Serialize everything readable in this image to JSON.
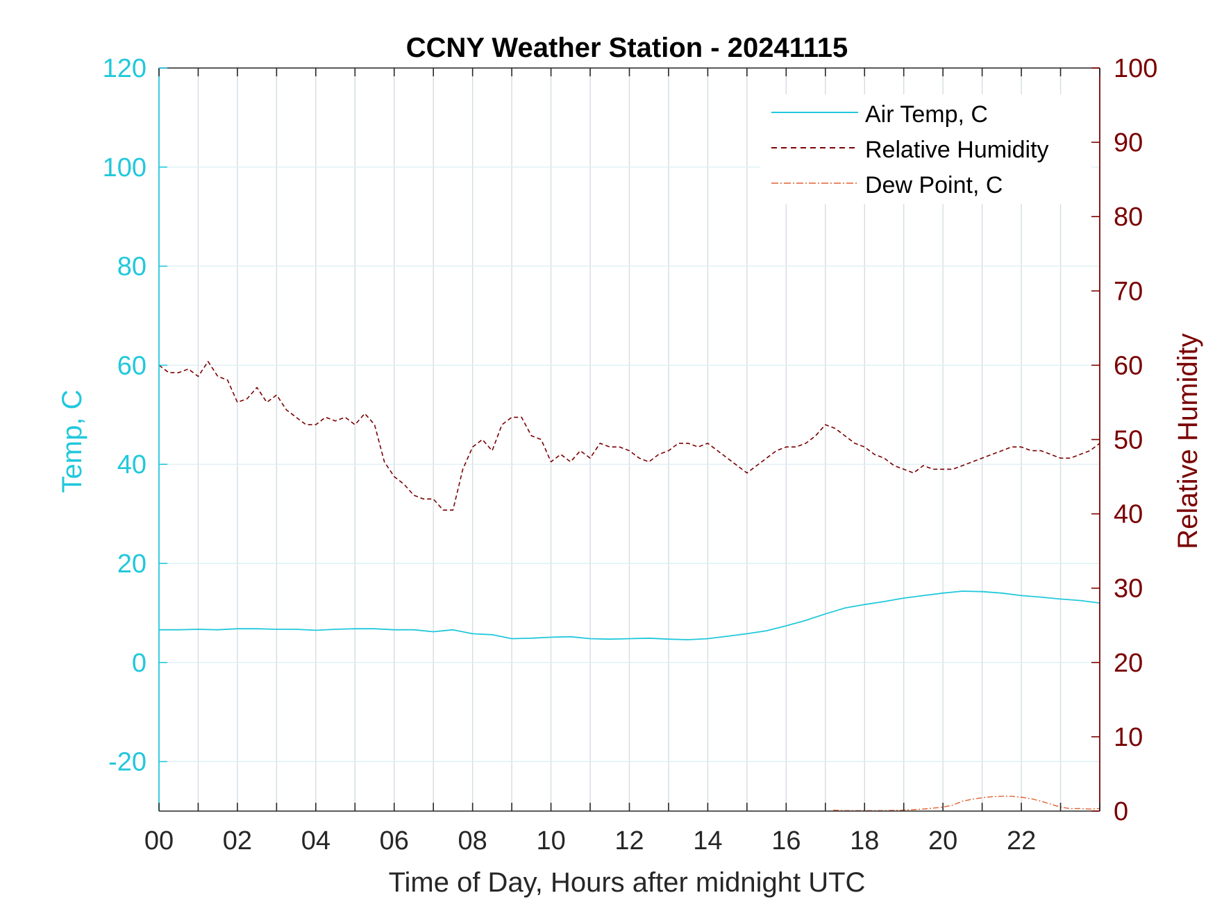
{
  "chart_data": {
    "type": "line",
    "title": "CCNY Weather Station - 20241115",
    "xlabel": "Time of Day, Hours after midnight UTC",
    "ylabel_left": "Temp, C",
    "ylabel_right": "Relative Humidity",
    "xlim": [
      0,
      24
    ],
    "ylim_left": [
      -30,
      120
    ],
    "ylim_right": [
      0,
      100
    ],
    "x_ticks": [
      0,
      2,
      4,
      6,
      8,
      10,
      12,
      14,
      16,
      18,
      20,
      22
    ],
    "x_tick_labels": [
      "00",
      "02",
      "04",
      "06",
      "08",
      "10",
      "12",
      "14",
      "16",
      "18",
      "20",
      "22"
    ],
    "y_left_ticks": [
      -20,
      0,
      20,
      40,
      60,
      80,
      100,
      120
    ],
    "y_left_tick_labels": [
      "-20",
      "0",
      "20",
      "40",
      "60",
      "80",
      "100",
      "120"
    ],
    "y_right_ticks": [
      0,
      10,
      20,
      30,
      40,
      50,
      60,
      70,
      80,
      90,
      100
    ],
    "y_right_tick_labels": [
      "0",
      "10",
      "20",
      "30",
      "40",
      "50",
      "60",
      "70",
      "80",
      "90",
      "100"
    ],
    "grid": true,
    "legend_position": "top-right",
    "colors": {
      "temp": "#21c8dc",
      "humidity": "#7a0000",
      "dewpoint": "#e06030",
      "axis": "#262626",
      "grid": "#dce6ea"
    },
    "series": [
      {
        "name": "Air Temp, C",
        "axis": "left",
        "style": "solid",
        "x": [
          0,
          0.5,
          1,
          1.5,
          2,
          2.5,
          3,
          3.5,
          4,
          4.5,
          5,
          5.5,
          6,
          6.5,
          7,
          7.5,
          8,
          8.5,
          9,
          9.5,
          10,
          10.5,
          11,
          11.5,
          12,
          12.5,
          13,
          13.5,
          14,
          14.5,
          15,
          15.5,
          16,
          16.5,
          17,
          17.5,
          18,
          18.5,
          19,
          19.5,
          20,
          20.5,
          21,
          21.5,
          22,
          22.5,
          23,
          23.5,
          24
        ],
        "y": [
          6.6,
          6.6,
          6.7,
          6.6,
          6.8,
          6.8,
          6.7,
          6.7,
          6.5,
          6.7,
          6.8,
          6.8,
          6.6,
          6.6,
          6.2,
          6.6,
          5.8,
          5.6,
          4.8,
          4.9,
          5.1,
          5.2,
          4.8,
          4.7,
          4.8,
          4.9,
          4.7,
          4.6,
          4.8,
          5.3,
          5.8,
          6.4,
          7.4,
          8.5,
          9.8,
          11.0,
          11.7,
          12.3,
          13.0,
          13.5,
          14.0,
          14.4,
          14.3,
          14.0,
          13.5,
          13.2,
          12.8,
          12.5,
          12.0
        ]
      },
      {
        "name": "Relative Humidity",
        "axis": "right",
        "style": "dashed",
        "x": [
          0,
          0.25,
          0.5,
          0.75,
          1,
          1.25,
          1.5,
          1.75,
          2,
          2.25,
          2.5,
          2.75,
          3,
          3.25,
          3.5,
          3.75,
          4,
          4.25,
          4.5,
          4.75,
          5,
          5.25,
          5.5,
          5.75,
          6,
          6.25,
          6.5,
          6.75,
          7,
          7.25,
          7.5,
          7.75,
          8,
          8.25,
          8.5,
          8.75,
          9,
          9.25,
          9.5,
          9.75,
          10,
          10.25,
          10.5,
          10.75,
          11,
          11.25,
          11.5,
          11.75,
          12,
          12.25,
          12.5,
          12.75,
          13,
          13.25,
          13.5,
          13.75,
          14,
          14.25,
          14.5,
          14.75,
          15,
          15.25,
          15.5,
          15.75,
          16,
          16.25,
          16.5,
          16.75,
          17,
          17.25,
          17.5,
          17.75,
          18,
          18.25,
          18.5,
          18.75,
          19,
          19.25,
          19.5,
          19.75,
          20,
          20.25,
          20.5,
          20.75,
          21,
          21.25,
          21.5,
          21.75,
          22,
          22.25,
          22.5,
          22.75,
          23,
          23.25,
          23.5,
          23.75,
          24
        ],
        "y": [
          60.0,
          59.0,
          59.0,
          59.5,
          58.5,
          60.5,
          58.5,
          58.0,
          55.0,
          55.5,
          57.0,
          55.0,
          56.0,
          54.0,
          53.0,
          52.0,
          52.0,
          53.0,
          52.5,
          53.0,
          52.0,
          53.5,
          52.0,
          47.0,
          45.0,
          44.0,
          42.5,
          42.0,
          42.0,
          40.5,
          40.5,
          46.0,
          49.0,
          50.0,
          48.5,
          52.0,
          53.0,
          53.0,
          50.5,
          50.0,
          47.0,
          48.0,
          47.0,
          48.5,
          47.5,
          49.5,
          49.0,
          49.0,
          48.5,
          47.5,
          47.0,
          48.0,
          48.5,
          49.5,
          49.5,
          49.0,
          49.5,
          48.5,
          47.5,
          46.5,
          45.5,
          46.5,
          47.5,
          48.5,
          49.0,
          49.0,
          49.5,
          50.5,
          52.0,
          51.5,
          50.5,
          49.5,
          49.0,
          48.0,
          47.5,
          46.5,
          46.0,
          45.5,
          46.5,
          46.0,
          46.0,
          46.0,
          46.5,
          47.0,
          47.5,
          48.0,
          48.5,
          49.0,
          49.0,
          48.5,
          48.5,
          48.0,
          47.5,
          47.5,
          48.0,
          48.5,
          49.5
        ]
      },
      {
        "name": "Dew Point, C",
        "axis": "left",
        "style": "dashdot",
        "x": [
          17.2,
          17.5,
          18,
          18.5,
          19,
          19.5,
          20,
          20.25,
          20.5,
          20.75,
          21,
          21.25,
          21.5,
          21.75,
          22,
          22.25,
          22.5,
          22.75,
          23,
          23.25,
          23.5,
          23.75,
          24
        ],
        "y": [
          -29.8,
          -29.9,
          -29.9,
          -29.9,
          -29.8,
          -29.6,
          -29.2,
          -28.8,
          -28.0,
          -27.6,
          -27.3,
          -27.1,
          -27.0,
          -27.0,
          -27.2,
          -27.5,
          -28.0,
          -28.6,
          -29.2,
          -29.5,
          -29.5,
          -29.6,
          -29.5
        ]
      }
    ]
  }
}
